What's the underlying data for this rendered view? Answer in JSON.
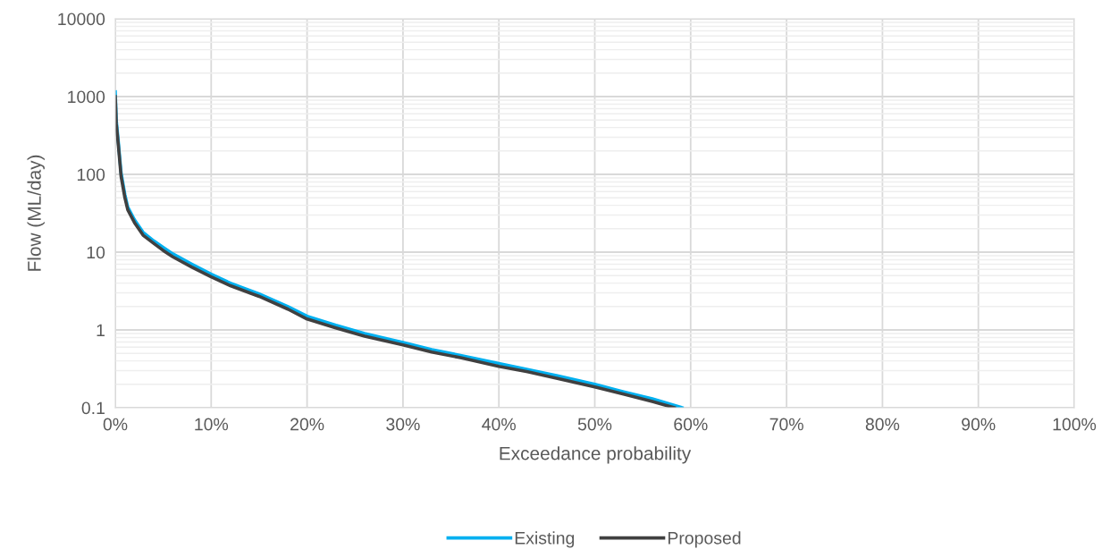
{
  "chart_data": {
    "type": "line",
    "xlabel": "Exceedance probability",
    "ylabel": "Flow (ML/day)",
    "log": "y",
    "grid": true,
    "legend": "bottom",
    "line_style": "solid",
    "marker": "none",
    "xlim": [
      0,
      100
    ],
    "xticks": [
      {
        "value": 0,
        "label": "0%"
      },
      {
        "value": 10,
        "label": "10%"
      },
      {
        "value": 20,
        "label": "20%"
      },
      {
        "value": 30,
        "label": "30%"
      },
      {
        "value": 40,
        "label": "40%"
      },
      {
        "value": 50,
        "label": "50%"
      },
      {
        "value": 60,
        "label": "60%"
      },
      {
        "value": 70,
        "label": "70%"
      },
      {
        "value": 80,
        "label": "80%"
      },
      {
        "value": 90,
        "label": "90%"
      },
      {
        "value": 100,
        "label": "100%"
      }
    ],
    "ylim": [
      0.1,
      10000
    ],
    "yticks": [
      0.1,
      1,
      10,
      100,
      1000,
      10000
    ],
    "series": [
      {
        "name": "Existing",
        "color": "#00b0f0",
        "x": [
          0,
          0.1,
          0.3,
          0.6,
          1,
          1.3,
          2,
          2.9,
          4,
          5,
          6,
          8,
          10,
          12,
          15,
          18,
          20,
          23,
          26,
          30,
          33,
          36,
          40,
          43,
          46,
          50,
          53,
          56,
          59.1
        ],
        "values": [
          1150,
          500,
          275,
          105,
          55,
          38,
          26,
          18,
          14,
          11.5,
          9.5,
          7,
          5.2,
          4,
          2.9,
          2,
          1.5,
          1.15,
          0.9,
          0.69,
          0.56,
          0.47,
          0.37,
          0.31,
          0.26,
          0.2,
          0.16,
          0.13,
          0.1
        ]
      },
      {
        "name": "Proposed",
        "color": "#404040",
        "x": [
          0,
          0.1,
          0.3,
          0.6,
          1,
          1.3,
          2,
          2.9,
          4,
          5,
          6,
          8,
          10,
          12,
          15,
          18,
          20,
          23,
          26,
          30,
          33,
          36,
          40,
          43,
          46,
          50,
          53,
          56,
          58.3
        ],
        "values": [
          1000,
          450,
          250,
          95,
          50,
          35,
          24,
          16.5,
          13,
          10.5,
          8.7,
          6.4,
          4.8,
          3.7,
          2.7,
          1.85,
          1.38,
          1.06,
          0.83,
          0.64,
          0.52,
          0.44,
          0.34,
          0.29,
          0.24,
          0.185,
          0.15,
          0.12,
          0.1
        ]
      }
    ]
  }
}
